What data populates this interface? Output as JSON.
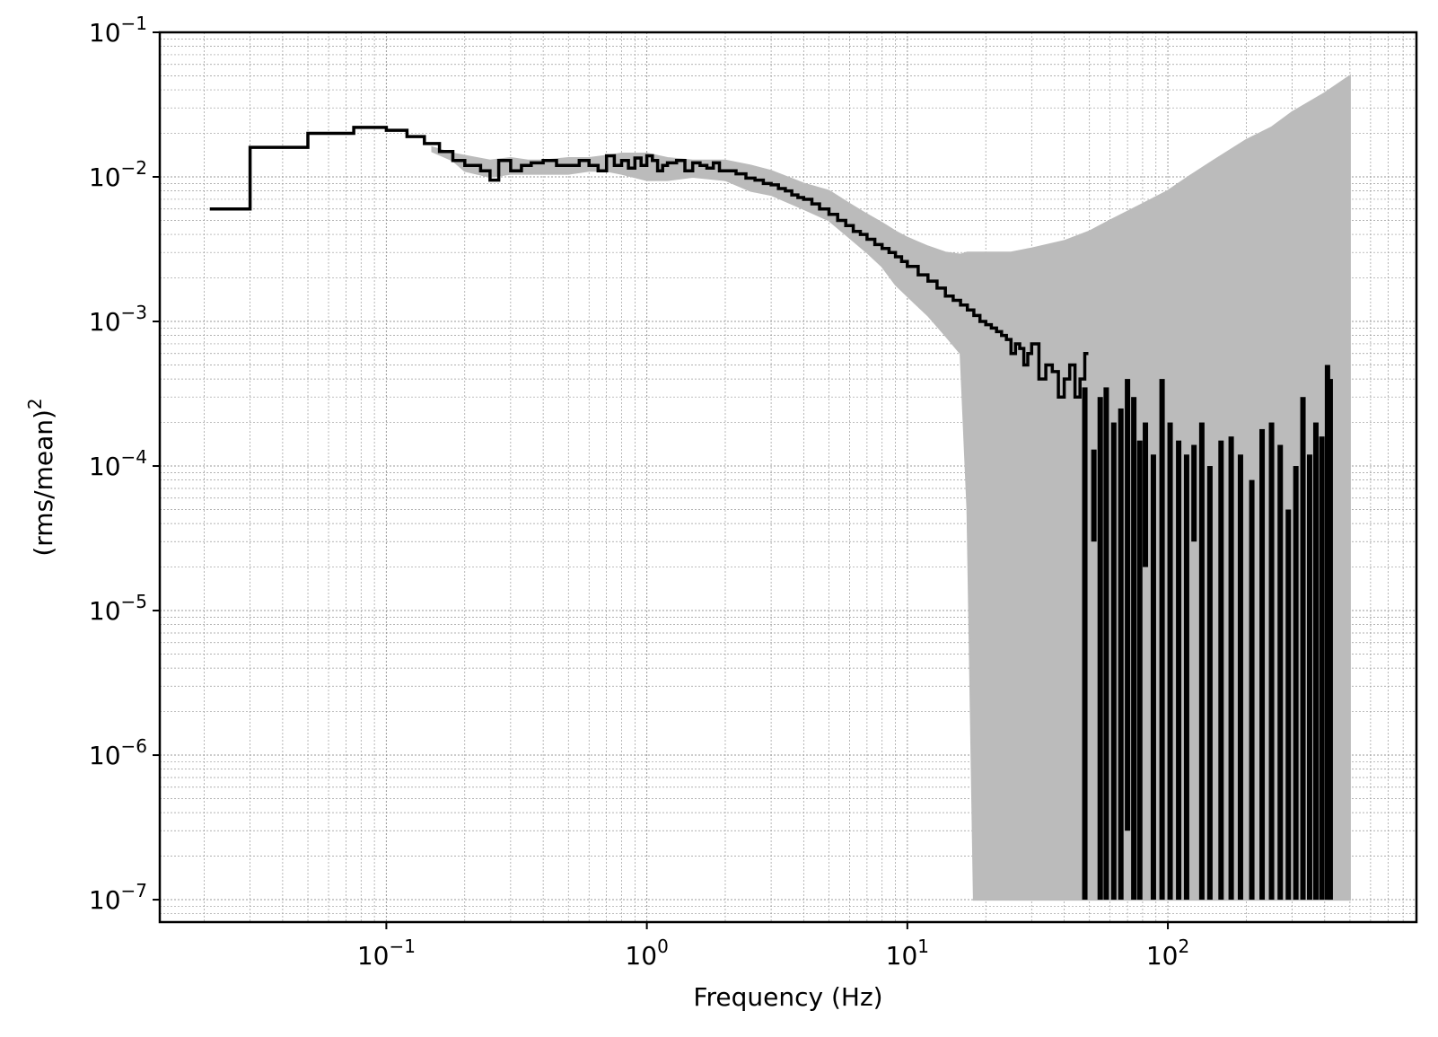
{
  "chart_data": {
    "type": "line",
    "title": "",
    "xlabel": "Frequency (Hz)",
    "ylabel_base": "(rms/mean)",
    "ylabel_sup": "2",
    "xscale": "log",
    "yscale": "log",
    "xlim": [
      0.0135,
      900
    ],
    "ylim": [
      7e-08,
      0.1
    ],
    "grid": true,
    "legend": "none",
    "x_ticks": [
      {
        "base": "10",
        "exp": "−1",
        "value": 0.1
      },
      {
        "base": "10",
        "exp": "0",
        "value": 1
      },
      {
        "base": "10",
        "exp": "1",
        "value": 10
      },
      {
        "base": "10",
        "exp": "2",
        "value": 100
      }
    ],
    "y_ticks": [
      {
        "base": "10",
        "exp": "−1",
        "value": 0.1
      },
      {
        "base": "10",
        "exp": "−2",
        "value": 0.01
      },
      {
        "base": "10",
        "exp": "−3",
        "value": 0.001
      },
      {
        "base": "10",
        "exp": "−4",
        "value": 0.0001
      },
      {
        "base": "10",
        "exp": "−5",
        "value": 1e-05
      },
      {
        "base": "10",
        "exp": "−6",
        "value": 1e-06
      },
      {
        "base": "10",
        "exp": "−7",
        "value": 1e-07
      }
    ],
    "colors": {
      "binned": "#000000",
      "raw": "#bbbbbb",
      "grid": "#999999"
    },
    "series": [
      {
        "style": "raw-band",
        "x": [
          0.15,
          0.18,
          0.2,
          0.25,
          0.3,
          0.35,
          0.4,
          0.5,
          0.6,
          0.7,
          0.8,
          1.0,
          1.2,
          1.5,
          2.0,
          2.5,
          3.0,
          4.0,
          5.0,
          6.0,
          7.0,
          8.0,
          9.0,
          10.0,
          12.0,
          14.0,
          16.0,
          17.0,
          18.0,
          20.0,
          25.0,
          30.0,
          40.0,
          50.0,
          60.0,
          80.0,
          100.0,
          120.0,
          150.0,
          200.0,
          250.0,
          300.0,
          400.0,
          500.0
        ],
        "upper": [
          0.016,
          0.0145,
          0.014,
          0.013,
          0.0135,
          0.013,
          0.013,
          0.0135,
          0.0135,
          0.014,
          0.0145,
          0.0145,
          0.0135,
          0.013,
          0.013,
          0.012,
          0.011,
          0.009,
          0.008,
          0.0065,
          0.0055,
          0.0048,
          0.0042,
          0.0038,
          0.0033,
          0.003,
          0.0029,
          0.003,
          0.003,
          0.003,
          0.003,
          0.0032,
          0.0036,
          0.0042,
          0.005,
          0.0065,
          0.008,
          0.01,
          0.013,
          0.018,
          0.022,
          0.028,
          0.038,
          0.05
        ],
        "lower": [
          0.015,
          0.013,
          0.011,
          0.01,
          0.0105,
          0.0105,
          0.0105,
          0.0105,
          0.011,
          0.011,
          0.0105,
          0.0095,
          0.0095,
          0.01,
          0.0095,
          0.008,
          0.0075,
          0.006,
          0.005,
          0.0038,
          0.003,
          0.0024,
          0.0018,
          0.0015,
          0.0011,
          0.0008,
          0.0006,
          5e-05,
          1e-07,
          1e-07,
          1e-07,
          1e-07,
          1e-07,
          1e-07,
          1e-07,
          1e-07,
          1e-07,
          1e-07,
          1e-07,
          1e-07,
          1e-07,
          1e-07,
          1e-07,
          1e-07
        ]
      },
      {
        "style": "binned-step",
        "x": [
          0.021,
          0.03,
          0.05,
          0.075,
          0.1,
          0.12,
          0.14,
          0.16,
          0.18,
          0.2,
          0.23,
          0.25,
          0.27,
          0.3,
          0.33,
          0.36,
          0.4,
          0.45,
          0.5,
          0.55,
          0.6,
          0.65,
          0.7,
          0.75,
          0.8,
          0.85,
          0.9,
          0.95,
          1.0,
          1.05,
          1.1,
          1.15,
          1.2,
          1.3,
          1.4,
          1.5,
          1.6,
          1.7,
          1.8,
          1.9,
          2.0,
          2.2,
          2.4,
          2.6,
          2.8,
          3.0,
          3.2,
          3.4,
          3.6,
          3.8,
          4.0,
          4.3,
          4.6,
          5.0,
          5.4,
          5.8,
          6.2,
          6.6,
          7.0,
          7.5,
          8.0,
          8.5,
          9.0,
          9.5,
          10.0,
          11.0,
          12.0,
          13.0,
          14.0,
          15.0,
          16.0,
          17.0,
          18.0,
          19.0,
          20.0,
          21.0,
          22.0,
          23.0,
          24.0,
          25.0,
          26.0,
          27.0,
          28.0,
          29.0,
          30.0,
          32.0,
          34.0,
          36.0,
          38.0,
          40.0,
          42.0,
          44.0,
          46.0,
          48.0
        ],
        "y": [
          0.006,
          0.016,
          0.02,
          0.022,
          0.021,
          0.019,
          0.017,
          0.015,
          0.013,
          0.012,
          0.011,
          0.0095,
          0.013,
          0.011,
          0.012,
          0.0125,
          0.013,
          0.012,
          0.012,
          0.013,
          0.012,
          0.011,
          0.014,
          0.012,
          0.013,
          0.0115,
          0.0135,
          0.012,
          0.014,
          0.013,
          0.011,
          0.012,
          0.0125,
          0.013,
          0.011,
          0.0125,
          0.012,
          0.0115,
          0.0125,
          0.011,
          0.011,
          0.0105,
          0.0098,
          0.0095,
          0.009,
          0.0088,
          0.0083,
          0.008,
          0.0075,
          0.0072,
          0.007,
          0.0065,
          0.006,
          0.0055,
          0.005,
          0.0046,
          0.0042,
          0.004,
          0.0037,
          0.0034,
          0.0032,
          0.003,
          0.0028,
          0.0026,
          0.0024,
          0.0021,
          0.0019,
          0.0017,
          0.0015,
          0.0014,
          0.0013,
          0.0012,
          0.0011,
          0.001,
          0.00095,
          0.0009,
          0.00085,
          0.0008,
          0.00075,
          0.0006,
          0.0007,
          0.00065,
          0.0005,
          0.0006,
          0.0007,
          0.0004,
          0.0005,
          0.00045,
          0.0003,
          0.0004,
          0.0005,
          0.0003,
          0.0004,
          0.0006
        ]
      },
      {
        "style": "binned-spikes",
        "x": [
          48,
          52,
          55,
          58,
          62,
          66,
          70,
          74,
          78,
          82,
          88,
          95,
          102,
          110,
          118,
          126,
          135,
          145,
          160,
          175,
          190,
          210,
          230,
          250,
          270,
          290,
          310,
          330,
          350,
          370,
          390,
          410,
          420
        ],
        "top": [
          0.00035,
          0.00013,
          0.0003,
          0.00035,
          0.0002,
          0.00025,
          0.0004,
          0.0003,
          0.00015,
          0.0002,
          0.00012,
          0.0004,
          0.0002,
          0.00015,
          0.00012,
          0.00014,
          0.0002,
          0.0001,
          0.00015,
          0.00016,
          0.00012,
          8e-05,
          0.00018,
          0.0002,
          0.00014,
          5e-05,
          0.0001,
          0.0003,
          0.00012,
          0.0002,
          0.00016,
          0.0005,
          0.0004
        ],
        "bottom": [
          1e-07,
          3e-05,
          1e-07,
          1e-07,
          1e-07,
          1e-07,
          3e-07,
          1e-07,
          1e-07,
          2e-05,
          1e-07,
          1e-07,
          1e-07,
          1e-07,
          1e-07,
          3e-05,
          1e-07,
          1e-07,
          1e-07,
          1e-07,
          1e-07,
          1e-07,
          1e-07,
          1e-07,
          1e-07,
          1e-07,
          1e-07,
          1e-07,
          1e-07,
          1e-07,
          1e-07,
          1e-07,
          1e-07
        ]
      }
    ]
  }
}
